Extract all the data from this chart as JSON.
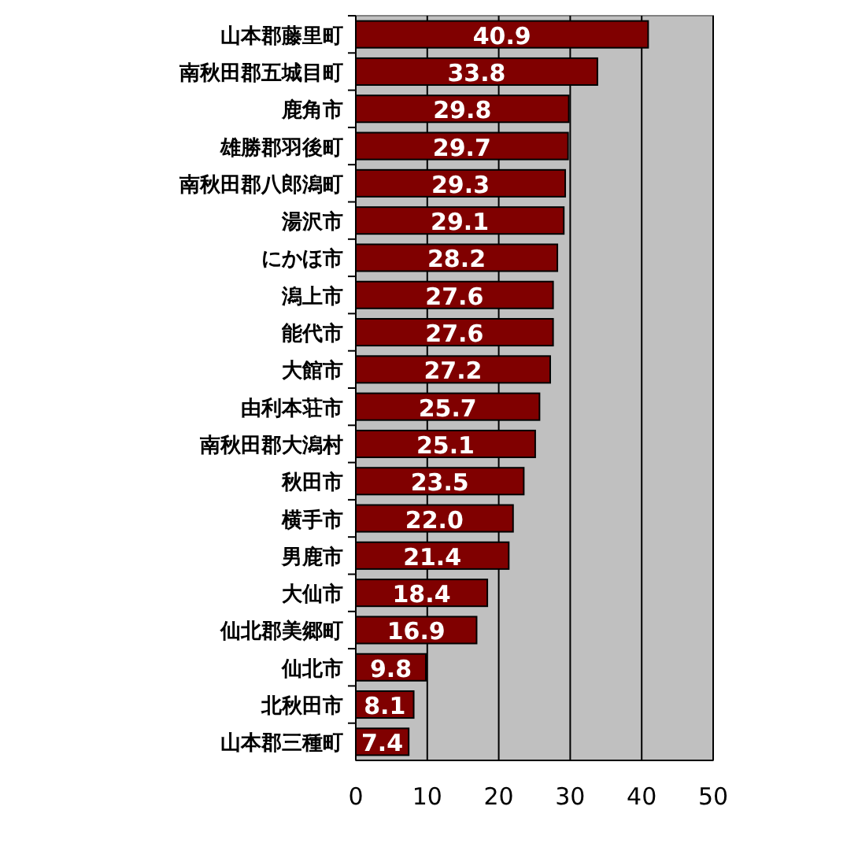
{
  "chart_data": {
    "type": "bar",
    "orientation": "horizontal",
    "categories": [
      "山本郡藤里町",
      "南秋田郡五城目町",
      "鹿角市",
      "雄勝郡羽後町",
      "南秋田郡八郎潟町",
      "湯沢市",
      "にかほ市",
      "潟上市",
      "能代市",
      "大館市",
      "由利本荘市",
      "南秋田郡大潟村",
      "秋田市",
      "横手市",
      "男鹿市",
      "大仙市",
      "仙北郡美郷町",
      "仙北市",
      "北秋田市",
      "山本郡三種町"
    ],
    "values": [
      40.9,
      33.8,
      29.8,
      29.7,
      29.3,
      29.1,
      28.2,
      27.6,
      27.6,
      27.2,
      25.7,
      25.1,
      23.5,
      22.0,
      21.4,
      18.4,
      16.9,
      9.8,
      8.1,
      7.4
    ],
    "value_labels": [
      "40.9",
      "33.8",
      "29.8",
      "29.7",
      "29.3",
      "29.1",
      "28.2",
      "27.6",
      "27.6",
      "27.2",
      "25.7",
      "25.1",
      "23.5",
      "22.0",
      "21.4",
      "18.4",
      "16.9",
      "9.8",
      "8.1",
      "7.4"
    ],
    "color": "#800000",
    "xlim": [
      0,
      50
    ],
    "xticks": [
      0,
      10,
      20,
      30,
      40,
      50
    ],
    "grid": "x"
  }
}
